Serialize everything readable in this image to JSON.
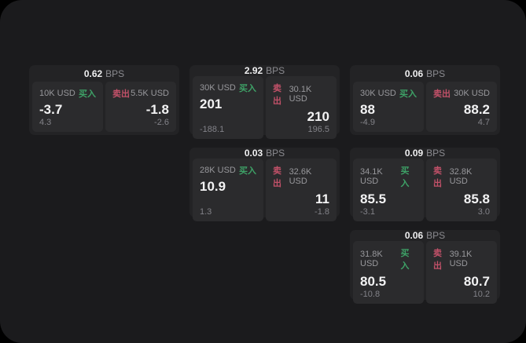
{
  "labels": {
    "bps_unit": "BPS",
    "buy": "买入",
    "sell": "卖出"
  },
  "colors": {
    "background": "#000000",
    "container": "#1b1b1d",
    "card": "#232325",
    "panel": "#2b2b2d",
    "buy_green": "#3ea267",
    "sell_red": "#c25169"
  },
  "cards": [
    {
      "bps": "0.62",
      "buy": {
        "size": "10K USD",
        "value": "-3.7",
        "delta": "4.3"
      },
      "sell": {
        "size": "5.5K USD",
        "value": "-1.8",
        "delta": "-2.6"
      }
    },
    {
      "bps": "2.92",
      "buy": {
        "size": "30K USD",
        "value": "201",
        "delta": "-188.1"
      },
      "sell": {
        "size": "30.1K USD",
        "value": "210",
        "delta": "196.5"
      }
    },
    {
      "bps": "0.06",
      "buy": {
        "size": "30K USD",
        "value": "88",
        "delta": "-4.9"
      },
      "sell": {
        "size": "30K USD",
        "value": "88.2",
        "delta": "4.7"
      }
    },
    {
      "bps": "0.03",
      "buy": {
        "size": "28K USD",
        "value": "10.9",
        "delta": "1.3"
      },
      "sell": {
        "size": "32.6K USD",
        "value": "11",
        "delta": "-1.8"
      }
    },
    {
      "bps": "0.09",
      "buy": {
        "size": "34.1K USD",
        "value": "85.5",
        "delta": "-3.1"
      },
      "sell": {
        "size": "32.8K USD",
        "value": "85.8",
        "delta": "3.0"
      }
    },
    {
      "bps": "0.06",
      "buy": {
        "size": "31.8K USD",
        "value": "80.5",
        "delta": "-10.8"
      },
      "sell": {
        "size": "39.1K USD",
        "value": "80.7",
        "delta": "10.2"
      }
    }
  ]
}
